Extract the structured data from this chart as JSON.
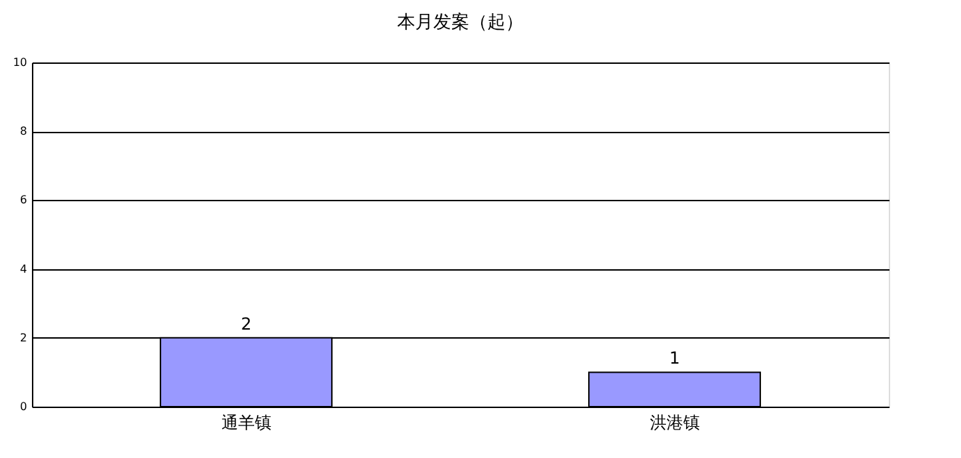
{
  "chart_data": {
    "type": "bar",
    "title": "本月发案（起）",
    "categories": [
      "通羊镇",
      "洪港镇"
    ],
    "values": [
      2,
      1
    ],
    "color": "#9999ff",
    "ylim": [
      0,
      10
    ],
    "yticks": [
      0,
      2,
      4,
      6,
      8,
      10
    ],
    "grid": "y",
    "data_labels": true
  }
}
